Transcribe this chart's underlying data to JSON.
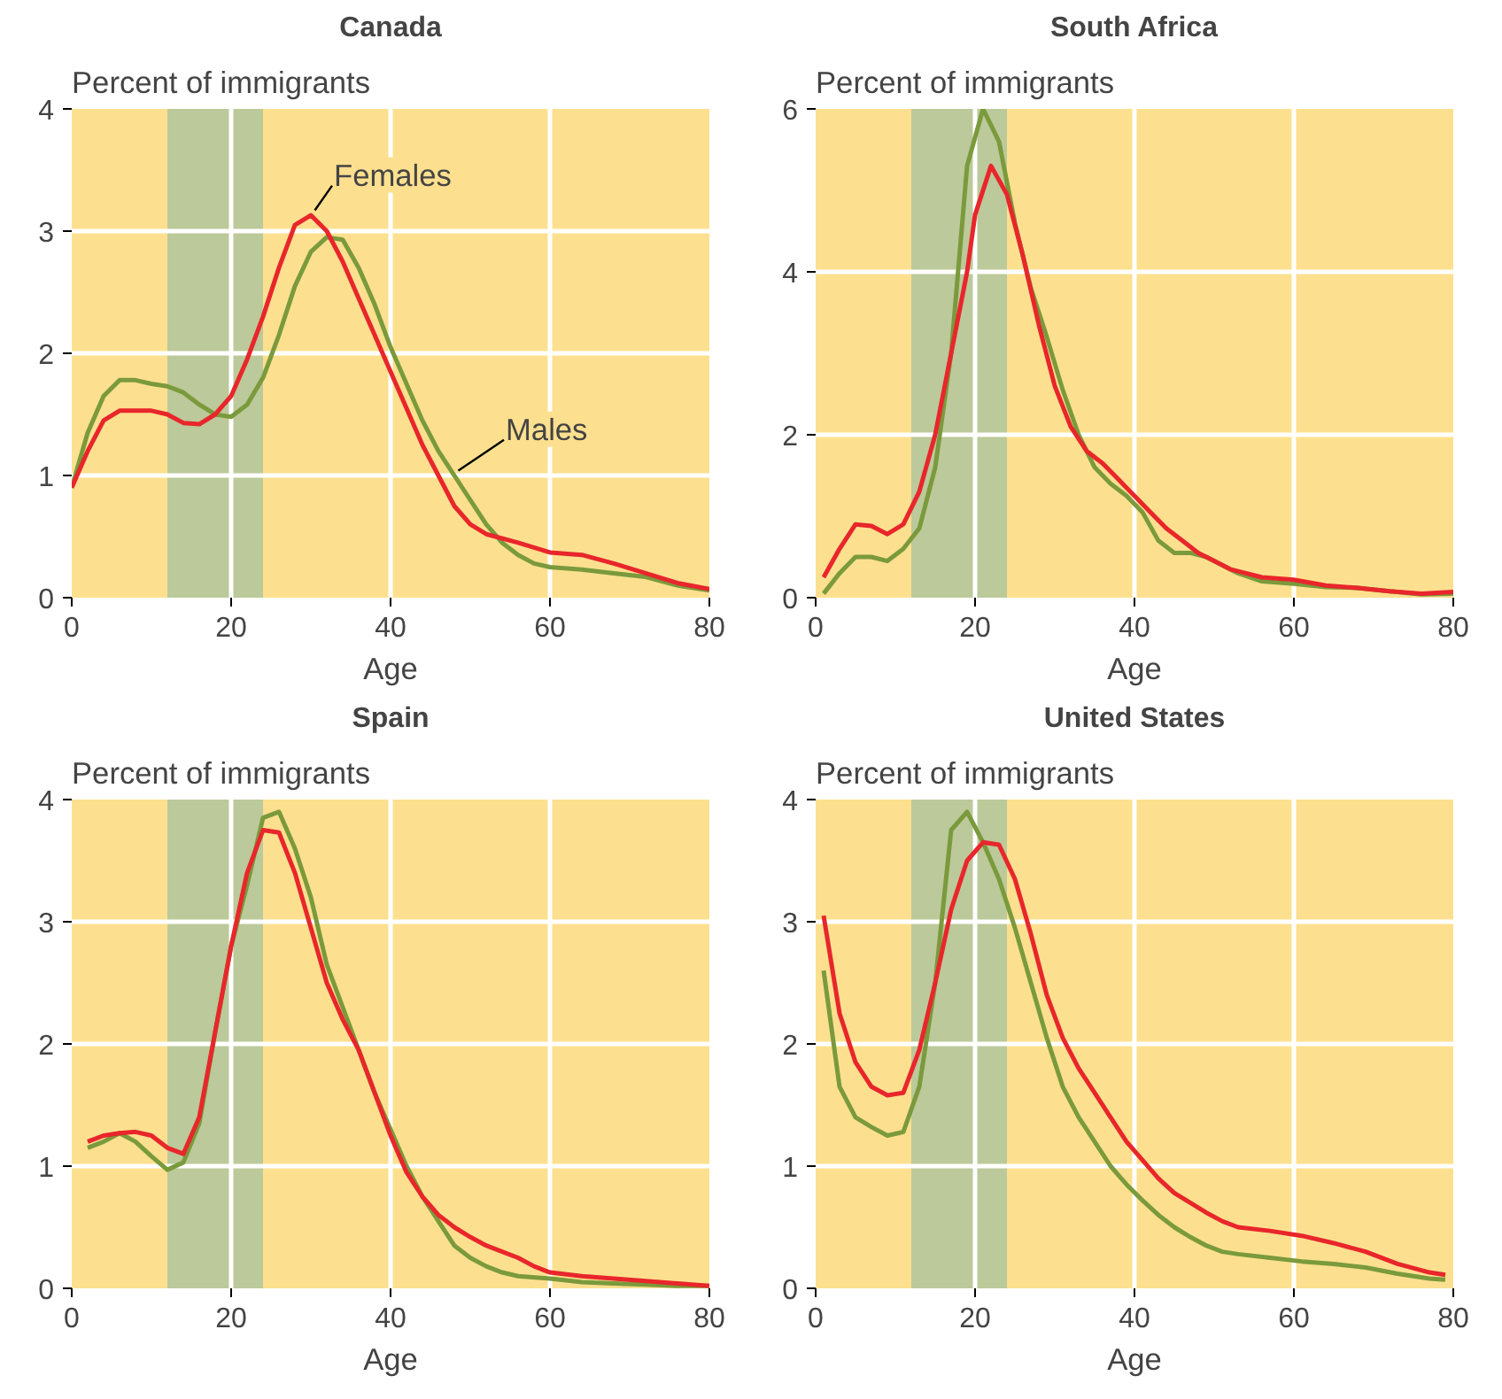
{
  "chart_data": [
    {
      "type": "line",
      "title": "Canada",
      "ylabel": "Percent of immigrants",
      "xlabel": "Age",
      "xlim": [
        0,
        80
      ],
      "xticks": [
        0,
        20,
        40,
        60,
        80
      ],
      "ylim": [
        0,
        4
      ],
      "yticks": [
        0,
        1,
        2,
        3,
        4
      ],
      "grid": true,
      "bands": [
        {
          "axis": "x",
          "from": 12,
          "to": 24,
          "color": "#bcc99a"
        }
      ],
      "annotations": [
        {
          "text": "Females",
          "x": 30,
          "y": 3.13
        },
        {
          "text": "Males",
          "x": 48,
          "y": 1.0
        }
      ],
      "series": [
        {
          "color": "#7a9a3c",
          "x": [
            0,
            2,
            4,
            6,
            8,
            10,
            12,
            14,
            16,
            18,
            20,
            22,
            24,
            26,
            28,
            30,
            32,
            34,
            36,
            38,
            40,
            42,
            44,
            46,
            48,
            50,
            52,
            54,
            56,
            58,
            60,
            64,
            68,
            72,
            76,
            80
          ],
          "values": [
            0.9,
            1.35,
            1.65,
            1.78,
            1.78,
            1.75,
            1.73,
            1.68,
            1.58,
            1.5,
            1.48,
            1.58,
            1.8,
            2.15,
            2.55,
            2.83,
            2.95,
            2.93,
            2.7,
            2.4,
            2.05,
            1.75,
            1.45,
            1.2,
            1.0,
            0.8,
            0.6,
            0.45,
            0.35,
            0.28,
            0.25,
            0.23,
            0.2,
            0.17,
            0.1,
            0.06
          ]
        },
        {
          "color": "#e8262b",
          "x": [
            0,
            2,
            4,
            6,
            8,
            10,
            12,
            14,
            16,
            18,
            20,
            22,
            24,
            26,
            28,
            30,
            32,
            34,
            36,
            38,
            40,
            42,
            44,
            46,
            48,
            50,
            52,
            56,
            60,
            64,
            68,
            72,
            76,
            80
          ],
          "values": [
            0.9,
            1.2,
            1.45,
            1.53,
            1.53,
            1.53,
            1.5,
            1.43,
            1.42,
            1.5,
            1.65,
            1.95,
            2.3,
            2.7,
            3.05,
            3.13,
            3.0,
            2.75,
            2.45,
            2.15,
            1.85,
            1.55,
            1.25,
            1.0,
            0.75,
            0.6,
            0.52,
            0.45,
            0.37,
            0.35,
            0.28,
            0.2,
            0.12,
            0.07
          ]
        }
      ]
    },
    {
      "type": "line",
      "title": "South Africa",
      "ylabel": "Percent of immigrants",
      "xlabel": "Age",
      "xlim": [
        0,
        80
      ],
      "xticks": [
        0,
        20,
        40,
        60,
        80
      ],
      "ylim": [
        0,
        6
      ],
      "yticks": [
        0,
        2,
        4,
        6
      ],
      "grid": true,
      "bands": [
        {
          "axis": "x",
          "from": 12,
          "to": 24,
          "color": "#bcc99a"
        }
      ],
      "series": [
        {
          "color": "#7a9a3c",
          "x": [
            1,
            3,
            5,
            7,
            9,
            11,
            13,
            15,
            17,
            19,
            21,
            23,
            25,
            27,
            29,
            31,
            33,
            35,
            37,
            39,
            41,
            43,
            45,
            47,
            49,
            51,
            53,
            56,
            60,
            64,
            68,
            72,
            76,
            80
          ],
          "values": [
            0.05,
            0.3,
            0.5,
            0.5,
            0.45,
            0.6,
            0.85,
            1.6,
            3.0,
            5.3,
            6.0,
            5.6,
            4.6,
            3.8,
            3.2,
            2.55,
            2.0,
            1.6,
            1.4,
            1.25,
            1.05,
            0.7,
            0.55,
            0.55,
            0.5,
            0.4,
            0.3,
            0.2,
            0.17,
            0.13,
            0.12,
            0.08,
            0.04,
            0.05
          ]
        },
        {
          "color": "#e8262b",
          "x": [
            1,
            3,
            5,
            7,
            9,
            11,
            13,
            15,
            17,
            19,
            20,
            22,
            24,
            26,
            28,
            30,
            32,
            34,
            36,
            38,
            40,
            42,
            44,
            46,
            48,
            50,
            52,
            56,
            60,
            64,
            68,
            72,
            76,
            80
          ],
          "values": [
            0.25,
            0.6,
            0.9,
            0.88,
            0.78,
            0.9,
            1.3,
            2.0,
            3.0,
            4.0,
            4.7,
            5.3,
            4.95,
            4.2,
            3.35,
            2.6,
            2.1,
            1.8,
            1.65,
            1.45,
            1.25,
            1.05,
            0.85,
            0.7,
            0.55,
            0.45,
            0.35,
            0.25,
            0.22,
            0.15,
            0.12,
            0.08,
            0.05,
            0.07
          ]
        }
      ]
    },
    {
      "type": "line",
      "title": "Spain",
      "ylabel": "Percent of immigrants",
      "xlabel": "Age",
      "xlim": [
        0,
        80
      ],
      "xticks": [
        0,
        20,
        40,
        60,
        80
      ],
      "ylim": [
        0,
        4
      ],
      "yticks": [
        0,
        1,
        2,
        3,
        4
      ],
      "grid": true,
      "bands": [
        {
          "axis": "x",
          "from": 12,
          "to": 24,
          "color": "#bcc99a"
        }
      ],
      "series": [
        {
          "color": "#7a9a3c",
          "x": [
            2,
            4,
            6,
            8,
            10,
            12,
            14,
            16,
            18,
            20,
            22,
            24,
            26,
            28,
            30,
            32,
            34,
            36,
            38,
            40,
            42,
            44,
            46,
            48,
            50,
            52,
            54,
            56,
            60,
            64,
            68,
            72,
            76,
            80
          ],
          "values": [
            1.15,
            1.2,
            1.27,
            1.2,
            1.08,
            0.97,
            1.03,
            1.35,
            2.1,
            2.8,
            3.3,
            3.85,
            3.9,
            3.6,
            3.2,
            2.65,
            2.3,
            1.95,
            1.6,
            1.3,
            1.0,
            0.75,
            0.55,
            0.35,
            0.25,
            0.18,
            0.13,
            0.1,
            0.08,
            0.05,
            0.04,
            0.03,
            0.02,
            0.02
          ]
        },
        {
          "color": "#e8262b",
          "x": [
            2,
            4,
            6,
            8,
            10,
            12,
            14,
            16,
            18,
            20,
            22,
            24,
            26,
            28,
            30,
            32,
            34,
            36,
            38,
            40,
            42,
            44,
            46,
            48,
            50,
            52,
            54,
            56,
            58,
            60,
            64,
            68,
            72,
            76,
            80
          ],
          "values": [
            1.2,
            1.25,
            1.27,
            1.28,
            1.25,
            1.15,
            1.1,
            1.4,
            2.1,
            2.8,
            3.4,
            3.75,
            3.73,
            3.4,
            2.95,
            2.5,
            2.2,
            1.95,
            1.6,
            1.25,
            0.95,
            0.75,
            0.6,
            0.5,
            0.42,
            0.35,
            0.3,
            0.25,
            0.18,
            0.13,
            0.1,
            0.08,
            0.06,
            0.04,
            0.02
          ]
        }
      ]
    },
    {
      "type": "line",
      "title": "United States",
      "ylabel": "Percent of immigrants",
      "xlabel": "Age",
      "xlim": [
        0,
        80
      ],
      "xticks": [
        0,
        20,
        40,
        60,
        80
      ],
      "ylim": [
        0,
        4
      ],
      "yticks": [
        0,
        1,
        2,
        3,
        4
      ],
      "grid": true,
      "bands": [
        {
          "axis": "x",
          "from": 12,
          "to": 24,
          "color": "#bcc99a"
        }
      ],
      "series": [
        {
          "color": "#7a9a3c",
          "x": [
            1,
            3,
            5,
            7,
            9,
            11,
            13,
            15,
            17,
            19,
            21,
            23,
            25,
            27,
            29,
            31,
            33,
            35,
            37,
            39,
            41,
            43,
            45,
            47,
            49,
            51,
            53,
            57,
            61,
            65,
            69,
            73,
            77,
            79
          ],
          "values": [
            2.6,
            1.65,
            1.4,
            1.32,
            1.25,
            1.28,
            1.65,
            2.5,
            3.75,
            3.9,
            3.65,
            3.35,
            2.95,
            2.5,
            2.05,
            1.65,
            1.4,
            1.2,
            1.0,
            0.85,
            0.72,
            0.6,
            0.5,
            0.42,
            0.35,
            0.3,
            0.28,
            0.25,
            0.22,
            0.2,
            0.17,
            0.12,
            0.08,
            0.07
          ]
        },
        {
          "color": "#e8262b",
          "x": [
            1,
            3,
            5,
            7,
            9,
            11,
            13,
            15,
            17,
            19,
            21,
            23,
            25,
            27,
            29,
            31,
            33,
            35,
            37,
            39,
            41,
            43,
            45,
            47,
            49,
            51,
            53,
            57,
            61,
            65,
            69,
            73,
            77,
            79
          ],
          "values": [
            3.05,
            2.25,
            1.85,
            1.65,
            1.58,
            1.6,
            1.95,
            2.5,
            3.1,
            3.5,
            3.65,
            3.63,
            3.35,
            2.9,
            2.4,
            2.05,
            1.8,
            1.6,
            1.4,
            1.2,
            1.05,
            0.9,
            0.78,
            0.7,
            0.62,
            0.55,
            0.5,
            0.47,
            0.43,
            0.37,
            0.3,
            0.2,
            0.13,
            0.11
          ]
        }
      ]
    }
  ]
}
